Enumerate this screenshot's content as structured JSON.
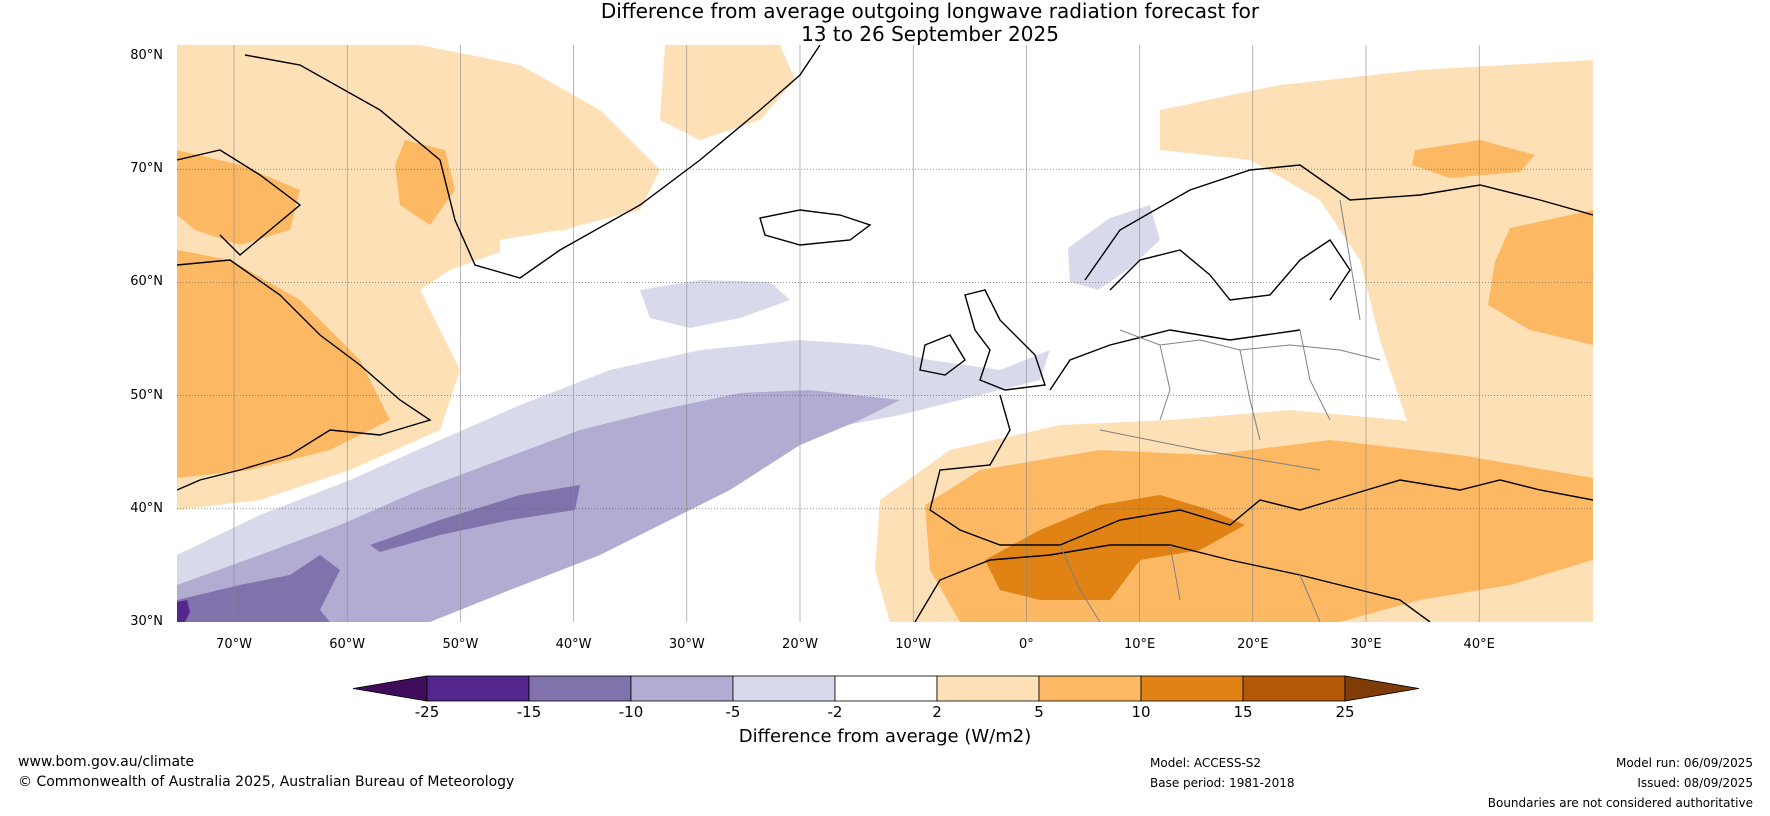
{
  "title_line1": "Difference from average outgoing longwave radiation forecast for",
  "title_line2": "13 to 26 September 2025",
  "lat_labels": [
    "80°N",
    "70°N",
    "60°N",
    "50°N",
    "40°N",
    "30°N"
  ],
  "lon_labels": [
    "70°W",
    "60°W",
    "50°W",
    "40°W",
    "30°W",
    "20°W",
    "10°W",
    "0°",
    "10°E",
    "20°E",
    "30°E",
    "40°E"
  ],
  "colorbar": {
    "ticks": [
      "-25",
      "-15",
      "-10",
      "-5",
      "-2",
      "2",
      "5",
      "10",
      "15",
      "25"
    ],
    "colors": [
      "#3f0d5b",
      "#54278f",
      "#8073ac",
      "#b2abd2",
      "#d8daeb",
      "#ffffff",
      "#fee0b6",
      "#fdb863",
      "#e08214",
      "#b35806",
      "#7f3b08"
    ],
    "title": "Difference from average (W/m2)"
  },
  "footer": {
    "website": "www.bom.gov.au/climate",
    "copyright": "© Commonwealth of Australia 2025, Australian Bureau of Meteorology",
    "model": "Model: ACCESS-S2",
    "base_period": "Base period: 1981-2018",
    "model_run": "Model run: 06/09/2025",
    "issued": "Issued: 08/09/2025",
    "disclaimer": "Boundaries are not considered authoritative"
  }
}
